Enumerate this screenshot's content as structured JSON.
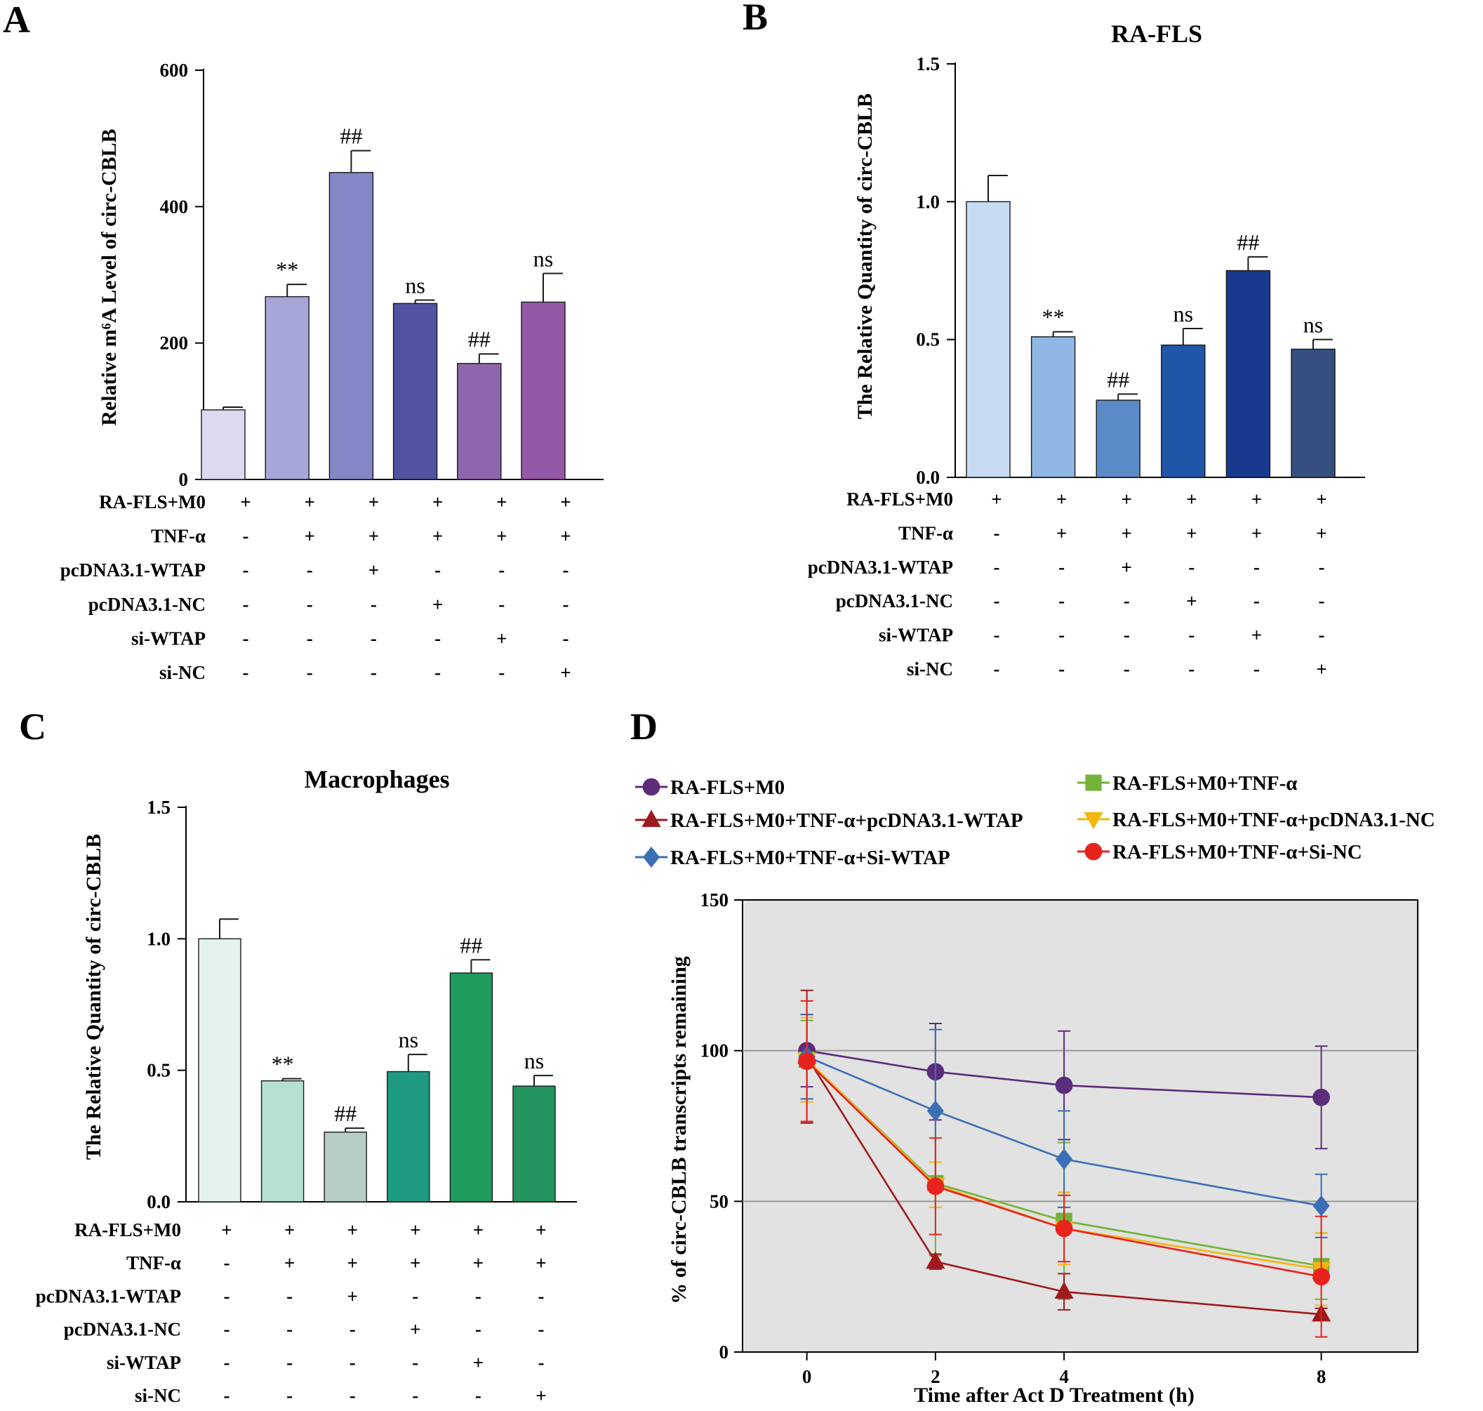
{
  "figure": {
    "panels": [
      {
        "letter": "A",
        "title": "",
        "ylabel": "Relative m⁶A Level of circ-CBLB"
      },
      {
        "letter": "B",
        "title": "RA-FLS",
        "ylabel": "The Relative Quantity of circ-CBLB"
      },
      {
        "letter": "C",
        "title": "Macrophages",
        "ylabel": "The Relative Quantity of circ-CBLB"
      },
      {
        "letter": "D",
        "title": "",
        "ylabel": "% of  circ-CBLB transcripts remaining",
        "xlabel": "Time after Act D Treatment (h)"
      }
    ]
  },
  "conditions": {
    "row_labels": [
      "RA-FLS+M0",
      "TNF-α",
      "pcDNA3.1-WTAP",
      "pcDNA3.1-NC",
      "si-WTAP",
      "si-NC"
    ],
    "signs": [
      [
        "+",
        "+",
        "+",
        "+",
        "+",
        "+"
      ],
      [
        "-",
        "+",
        "+",
        "+",
        "+",
        "+"
      ],
      [
        "-",
        "-",
        "+",
        "-",
        "-",
        "-"
      ],
      [
        "-",
        "-",
        "-",
        "+",
        "-",
        "-"
      ],
      [
        "-",
        "-",
        "-",
        "-",
        "+",
        "-"
      ],
      [
        "-",
        "-",
        "-",
        "-",
        "-",
        "+"
      ]
    ]
  },
  "chart_data": [
    {
      "id": "A",
      "type": "bar",
      "title": "",
      "ylabel": "Relative m⁶A Level of circ-CBLB",
      "ylim": [
        0,
        600
      ],
      "yticks": [
        0,
        200,
        400,
        600
      ],
      "values": [
        102,
        268,
        450,
        258,
        170,
        260
      ],
      "errors": [
        4,
        18,
        32,
        5,
        14,
        42
      ],
      "annotations": [
        "",
        "**",
        "##",
        "ns",
        "##",
        "ns"
      ],
      "colors": [
        "#dcd9f0",
        "#a7a6d8",
        "#8486c6",
        "#5152a2",
        "#8f66ae",
        "#9459a6"
      ]
    },
    {
      "id": "B",
      "type": "bar",
      "title": "RA-FLS",
      "ylabel": "The Relative Quantity of circ-CBLB",
      "ylim": [
        0,
        1.5
      ],
      "yticks": [
        "0.0",
        "0.5",
        "1.0",
        "1.5"
      ],
      "values": [
        1.0,
        0.51,
        0.28,
        0.48,
        0.75,
        0.465
      ],
      "errors": [
        0.095,
        0.018,
        0.022,
        0.06,
        0.05,
        0.035
      ],
      "annotations": [
        "",
        "**",
        "##",
        "ns",
        "##",
        "ns"
      ],
      "colors": [
        "#c7dcf3",
        "#8eb7e3",
        "#5b8ac9",
        "#2056a8",
        "#173a8f",
        "#374f80"
      ]
    },
    {
      "id": "C",
      "type": "bar",
      "title": "Macrophages",
      "ylabel": "The Relative Quantity of circ-CBLB",
      "ylim": [
        0,
        1.5
      ],
      "yticks": [
        "0.0",
        "0.5",
        "1.0",
        "1.5"
      ],
      "values": [
        1.0,
        0.46,
        0.265,
        0.495,
        0.87,
        0.44
      ],
      "errors": [
        0.075,
        0.008,
        0.015,
        0.065,
        0.05,
        0.04
      ],
      "annotations": [
        "",
        "**",
        "##",
        "ns",
        "##",
        "ns"
      ],
      "colors": [
        "#e2f2ec",
        "#b5e0cf",
        "#b6cec4",
        "#1f9b84",
        "#1e9a5d",
        "#22955e"
      ]
    },
    {
      "id": "D",
      "type": "line",
      "title": "",
      "xlabel": "Time after Act D Treatment (h)",
      "ylabel": "% of  circ-CBLB transcripts remaining",
      "x": [
        0,
        2,
        4,
        8
      ],
      "xlim": [
        -1,
        9.5
      ],
      "ylim": [
        0,
        150
      ],
      "xticks": [
        0,
        2,
        4,
        8
      ],
      "yticks": [
        0,
        50,
        100,
        150
      ],
      "reference_lines": [
        50,
        100
      ],
      "series": [
        {
          "name": "RA-FLS+M0",
          "color": "#5b2d7a",
          "marker": "circle",
          "values": [
            100,
            93,
            88.5,
            84.5
          ],
          "errors": [
            12,
            16,
            18,
            17
          ]
        },
        {
          "name": "RA-FLS+M0+TNF-α",
          "color": "#72b33a",
          "marker": "square",
          "values": [
            97,
            56,
            43.5,
            28.5
          ],
          "errors": [
            13,
            24,
            26,
            11
          ]
        },
        {
          "name": "RA-FLS+M0+TNF-α+pcDNA3.1-WTAP",
          "color": "#9e1a1e",
          "marker": "triangle-up",
          "values": [
            98,
            30,
            20,
            12.5
          ],
          "errors": [
            22,
            2.5,
            6,
            2
          ]
        },
        {
          "name": "RA-FLS+M0+TNF-α+pcDNA3.1-NC",
          "color": "#f5b50f",
          "marker": "triangle-down",
          "values": [
            97,
            55.5,
            41,
            27.5
          ],
          "errors": [
            14,
            7.5,
            12,
            12
          ]
        },
        {
          "name": "RA-FLS+M0+TNF-α+Si-WTAP",
          "color": "#3b6eb5",
          "marker": "diamond",
          "values": [
            98,
            80,
            64,
            48.5
          ],
          "errors": [
            14,
            27,
            16,
            10.5
          ]
        },
        {
          "name": "RA-FLS+M0+TNF-α+Si-NC",
          "color": "#e8221c",
          "marker": "circle",
          "values": [
            96.5,
            55,
            41,
            25
          ],
          "errors": [
            20,
            16,
            11,
            20
          ]
        }
      ]
    }
  ]
}
